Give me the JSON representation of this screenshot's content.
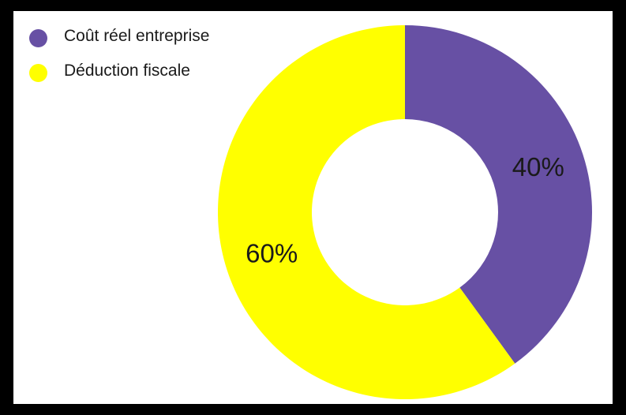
{
  "chart_data": {
    "type": "pie",
    "donut": true,
    "slices": [
      {
        "label": "Coût réel entreprise",
        "value": 40,
        "display": "40%",
        "color": "#6750a4"
      },
      {
        "label": "Déduction fiscale",
        "value": 60,
        "display": "60%",
        "color": "#ffff00"
      }
    ],
    "legend_position": "top-left"
  }
}
